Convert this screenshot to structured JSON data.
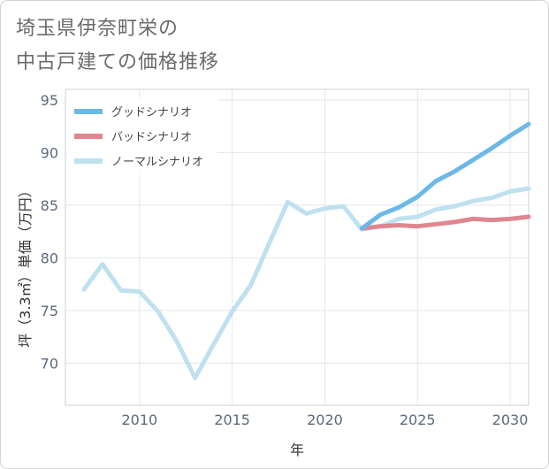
{
  "title_line1": "埼玉県伊奈町栄の",
  "title_line2": "中古戸建ての価格推移",
  "chart_data": {
    "type": "line",
    "xlabel": "年",
    "ylabel": "坪（3.3㎡）単価（万円）",
    "xlim": [
      2006,
      2031
    ],
    "ylim": [
      66,
      96
    ],
    "xticks": [
      2010,
      2015,
      2020,
      2025,
      2030
    ],
    "yticks": [
      70,
      75,
      80,
      85,
      90,
      95
    ],
    "grid": true,
    "legend_position": "top-left",
    "series": [
      {
        "name": "グッドシナリオ",
        "color": "#6cb8e8",
        "x": [
          2022,
          2023,
          2024,
          2025,
          2026,
          2027,
          2028,
          2029,
          2030,
          2031
        ],
        "y": [
          82.8,
          84.1,
          84.8,
          85.8,
          87.3,
          88.2,
          89.3,
          90.4,
          91.6,
          92.7
        ]
      },
      {
        "name": "バッドシナリオ",
        "color": "#e0868f",
        "x": [
          2022,
          2023,
          2024,
          2025,
          2026,
          2027,
          2028,
          2029,
          2030,
          2031
        ],
        "y": [
          82.8,
          83.0,
          83.1,
          83.0,
          83.2,
          83.4,
          83.7,
          83.6,
          83.7,
          83.9
        ]
      },
      {
        "name": "ノーマルシナリオ",
        "color": "#bfe0ef",
        "x": [
          2007,
          2008,
          2009,
          2010,
          2011,
          2012,
          2013,
          2014,
          2015,
          2016,
          2017,
          2018,
          2019,
          2020,
          2021,
          2022,
          2023,
          2024,
          2025,
          2026,
          2027,
          2028,
          2029,
          2030,
          2031
        ],
        "y": [
          77.0,
          79.4,
          76.9,
          76.8,
          74.9,
          72.1,
          68.6,
          71.8,
          74.9,
          77.4,
          81.4,
          85.3,
          84.2,
          84.7,
          84.9,
          82.7,
          83.0,
          83.7,
          83.9,
          84.6,
          84.9,
          85.4,
          85.7,
          86.3,
          86.6
        ]
      }
    ]
  }
}
